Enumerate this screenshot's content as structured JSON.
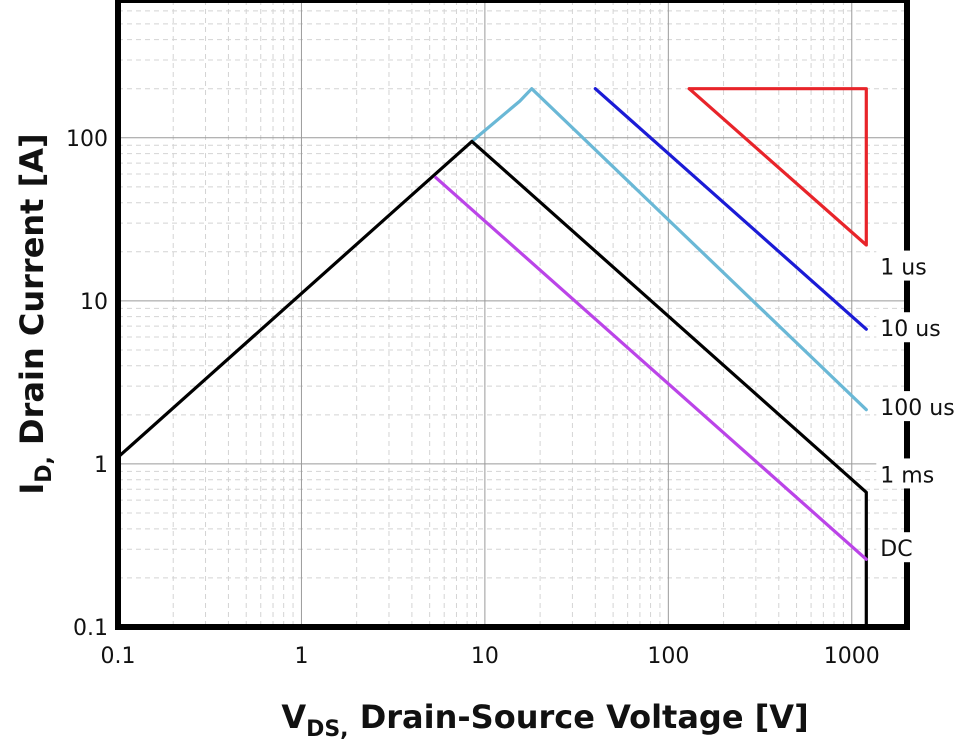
{
  "chart_data": {
    "type": "line",
    "title": "",
    "xlabel": {
      "main": "V",
      "sub": "DS,",
      "rest": " Drain-Source Voltage [V]"
    },
    "ylabel": {
      "main": "I",
      "sub": "D,",
      "rest": " Drain Current [A]"
    },
    "xscale": "log",
    "yscale": "log",
    "xlim": [
      0.1,
      2000
    ],
    "ylim": [
      0.1,
      700
    ],
    "x_ticks": [
      {
        "value": 0.1,
        "label": "0.1"
      },
      {
        "value": 1,
        "label": "1"
      },
      {
        "value": 10,
        "label": "10"
      },
      {
        "value": 100,
        "label": "100"
      },
      {
        "value": 1000,
        "label": "1000"
      }
    ],
    "y_ticks": [
      {
        "value": 0.1,
        "label": "0.1"
      },
      {
        "value": 1,
        "label": "1"
      },
      {
        "value": 10,
        "label": "10"
      },
      {
        "value": 100,
        "label": "100"
      }
    ],
    "grid": true,
    "limit_voltage": 1200,
    "series": [
      {
        "name": "1 us",
        "label_at": 16,
        "color": "#e8242a",
        "points": [
          [
            130,
            200
          ],
          [
            1200,
            200
          ],
          [
            1200,
            22
          ],
          [
            130,
            200
          ]
        ]
      },
      {
        "name": "10 us",
        "label_at": 6.7,
        "color": "#1b1bd6",
        "points": [
          [
            40,
            200
          ],
          [
            1200,
            6.7
          ]
        ]
      },
      {
        "name": "100 us",
        "label_at": 2.2,
        "color": "#6ab8d6",
        "points": [
          [
            8.5,
            95
          ],
          [
            15.5,
            168
          ],
          [
            18,
            200
          ],
          [
            1200,
            2.15
          ]
        ]
      },
      {
        "name": "1 ms",
        "label_at": 0.85,
        "color": "#000000",
        "points": [
          [
            0.1,
            1.1
          ],
          [
            8.5,
            95
          ],
          [
            1200,
            0.67
          ],
          [
            1200,
            0.1
          ]
        ]
      },
      {
        "name": "DC",
        "label_at": 0.3,
        "color": "#bb44e8",
        "points": [
          [
            5.4,
            57
          ],
          [
            1200,
            0.26
          ]
        ]
      }
    ]
  }
}
